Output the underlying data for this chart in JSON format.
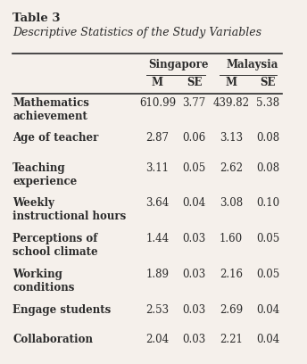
{
  "title": "Table 3",
  "subtitle": "Descriptive Statistics of the Study Variables",
  "col_headers_top": [
    "",
    "Singapore",
    "",
    "Malaysia",
    ""
  ],
  "col_headers_sub": [
    "",
    "M",
    "SE",
    "M",
    "SE"
  ],
  "rows": [
    [
      "Mathematics\nachievement",
      "610.99",
      "3.77",
      "439.82",
      "5.38"
    ],
    [
      "Age of teacher",
      "2.87",
      "0.06",
      "3.13",
      "0.08"
    ],
    [
      "Teaching\nexperience",
      "3.11",
      "0.05",
      "2.62",
      "0.08"
    ],
    [
      "Weekly\ninstructional hours",
      "3.64",
      "0.04",
      "3.08",
      "0.10"
    ],
    [
      "Perceptions of\nschool climate",
      "1.44",
      "0.03",
      "1.60",
      "0.05"
    ],
    [
      "Working\nconditions",
      "1.89",
      "0.03",
      "2.16",
      "0.05"
    ],
    [
      "Engage students",
      "2.53",
      "0.03",
      "2.69",
      "0.04"
    ],
    [
      "Collaboration",
      "2.04",
      "0.03",
      "2.21",
      "0.04"
    ]
  ],
  "bg_color": "#f5f0eb",
  "text_color": "#2b2b2b",
  "font_size": 8.5,
  "title_font_size": 9.5,
  "subtitle_font_size": 9.0
}
